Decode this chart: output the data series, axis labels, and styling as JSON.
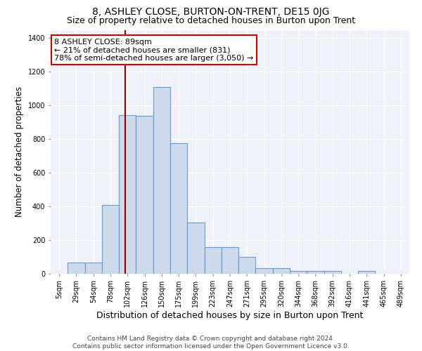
{
  "title": "8, ASHLEY CLOSE, BURTON-ON-TRENT, DE15 0JG",
  "subtitle": "Size of property relative to detached houses in Burton upon Trent",
  "xlabel": "Distribution of detached houses by size in Burton upon Trent",
  "ylabel": "Number of detached properties",
  "footer_line1": "Contains HM Land Registry data © Crown copyright and database right 2024.",
  "footer_line2": "Contains public sector information licensed under the Open Government Licence v3.0.",
  "categories": [
    "5sqm",
    "29sqm",
    "54sqm",
    "78sqm",
    "102sqm",
    "126sqm",
    "150sqm",
    "175sqm",
    "199sqm",
    "223sqm",
    "247sqm",
    "271sqm",
    "295sqm",
    "320sqm",
    "344sqm",
    "368sqm",
    "392sqm",
    "416sqm",
    "441sqm",
    "465sqm",
    "489sqm"
  ],
  "values": [
    0,
    65,
    65,
    410,
    945,
    940,
    1110,
    775,
    305,
    160,
    160,
    100,
    35,
    35,
    15,
    15,
    15,
    0,
    15,
    0,
    0
  ],
  "bar_color": "#cddaeb",
  "bar_edge_color": "#6699cc",
  "vline_color": "#990000",
  "vline_x_index": 3.85,
  "annotation_line1": "8 ASHLEY CLOSE: 89sqm",
  "annotation_line2": "← 21% of detached houses are smaller (831)",
  "annotation_line3": "78% of semi-detached houses are larger (3,050) →",
  "annotation_box_facecolor": "#ffffff",
  "annotation_box_edgecolor": "#cc0000",
  "ylim": [
    0,
    1450
  ],
  "yticks": [
    0,
    200,
    400,
    600,
    800,
    1000,
    1200,
    1400
  ],
  "background_color": "#eef2f8",
  "title_fontsize": 10,
  "subtitle_fontsize": 9,
  "ylabel_fontsize": 8.5,
  "xlabel_fontsize": 9,
  "tick_fontsize": 7,
  "annotation_fontsize": 8,
  "footer_fontsize": 6.5
}
